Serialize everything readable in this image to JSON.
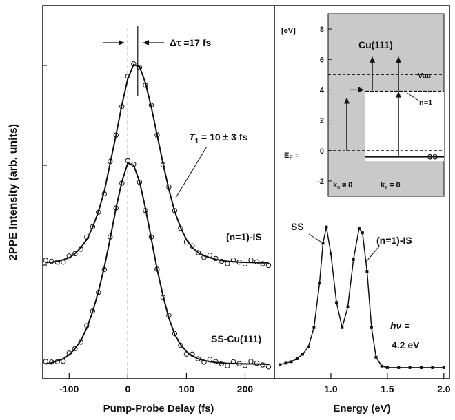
{
  "chart_data": [
    {
      "type": "scatter",
      "ylabel": "2PPE Intensity (arb. units)",
      "xlabel": "Pump-Probe Delay (fs)",
      "xlim": [
        -145,
        250
      ],
      "xticks": [
        -100,
        0,
        100,
        200
      ],
      "tick_labels": [
        "-100",
        "0",
        "100",
        "200"
      ],
      "fit_lines": true,
      "series": [
        {
          "name": "(n=1)-IS",
          "x": [
            -140,
            -130,
            -120,
            -110,
            -100,
            -90,
            -80,
            -70,
            -60,
            -50,
            -40,
            -30,
            -20,
            -10,
            0,
            10,
            20,
            30,
            40,
            50,
            60,
            70,
            80,
            90,
            100,
            110,
            120,
            130,
            140,
            150,
            160,
            170,
            180,
            190,
            200,
            210,
            220,
            230,
            240
          ],
          "y": [
            0.005,
            0.008,
            0.012,
            0.02,
            0.03,
            0.05,
            0.08,
            0.12,
            0.18,
            0.26,
            0.36,
            0.5,
            0.64,
            0.79,
            0.92,
            0.99,
            0.98,
            0.9,
            0.78,
            0.64,
            0.5,
            0.37,
            0.26,
            0.18,
            0.12,
            0.08,
            0.055,
            0.04,
            0.03,
            0.022,
            0.016,
            0.012,
            0.01,
            0.008,
            0.007,
            0.006,
            0.005,
            0.004,
            0.004
          ]
        },
        {
          "name": "SS-Cu(111)",
          "x": [
            -140,
            -130,
            -120,
            -110,
            -100,
            -90,
            -80,
            -70,
            -60,
            -50,
            -40,
            -30,
            -20,
            -10,
            0,
            10,
            20,
            30,
            40,
            50,
            60,
            70,
            80,
            90,
            100,
            110,
            120,
            130,
            140,
            150,
            160,
            170,
            180,
            190,
            200,
            210,
            220,
            230,
            240
          ],
          "y": [
            0.005,
            0.01,
            0.02,
            0.03,
            0.05,
            0.08,
            0.12,
            0.18,
            0.26,
            0.36,
            0.48,
            0.62,
            0.77,
            0.9,
            0.99,
            0.98,
            0.9,
            0.77,
            0.62,
            0.47,
            0.34,
            0.23,
            0.15,
            0.1,
            0.066,
            0.045,
            0.03,
            0.022,
            0.016,
            0.012,
            0.01,
            0.008,
            0.007,
            0.006,
            0.005,
            0.005,
            0.004,
            0.004,
            0.003
          ]
        }
      ],
      "annotations": {
        "delta_tau": "Δτ =17 fs",
        "t1_symbol": "T",
        "t1_sub": "1",
        "t1_rest": " = 10 ± 3 fs",
        "label_is": "(n=1)-IS",
        "label_ss": "SS-Cu(111)"
      },
      "marker_lines": {
        "zero_dashed": 0,
        "peak_shift": 17
      }
    },
    {
      "type": "line",
      "xlabel": "Energy (eV)",
      "xlim": [
        0.5,
        2.05
      ],
      "xticks": [
        1.0,
        1.5,
        2.0
      ],
      "tick_labels": [
        "1.0",
        "1.5",
        "2.0"
      ],
      "series": [
        {
          "name": "spectrum",
          "x": [
            0.55,
            0.6,
            0.65,
            0.7,
            0.75,
            0.8,
            0.85,
            0.9,
            0.93,
            0.96,
            1.0,
            1.05,
            1.1,
            1.15,
            1.2,
            1.25,
            1.28,
            1.32,
            1.36,
            1.4,
            1.45,
            1.5,
            1.6,
            1.7,
            1.8,
            1.9,
            2.0
          ],
          "y": [
            0.03,
            0.04,
            0.05,
            0.07,
            0.1,
            0.15,
            0.28,
            0.58,
            0.85,
            0.96,
            0.78,
            0.45,
            0.28,
            0.42,
            0.74,
            0.95,
            0.92,
            0.66,
            0.28,
            0.08,
            0.02,
            0.01,
            0.01,
            0.01,
            0.01,
            0.01,
            0.01
          ]
        }
      ],
      "annotations": {
        "label_ss": "SS",
        "label_is": "(n=1)-IS",
        "hv_symbol": "hν =",
        "hv_value": "4.2 eV"
      },
      "inset": {
        "ylabel": "[eV]",
        "yticks": [
          8,
          6,
          4,
          2,
          0,
          -2
        ],
        "tick_labels": [
          "8",
          "6",
          "4",
          "2",
          "0",
          "-2"
        ],
        "ylim": [
          -3,
          9
        ],
        "title": "Cu(111)",
        "levels": {
          "vac": 5,
          "n1": 3.9,
          "ef": 0,
          "ss": -0.4
        },
        "labels": {
          "vac": "Vac",
          "n1": "n=1",
          "ef": "E",
          "ef_sub": "F",
          "ef_eq": " =",
          "ss": "SS",
          "k_left": "k",
          "k_left_sub": "II",
          "k_left_rest": " ≠ 0",
          "k_right": "k",
          "k_right_sub": "II",
          "k_right_rest": " = 0"
        }
      }
    }
  ]
}
